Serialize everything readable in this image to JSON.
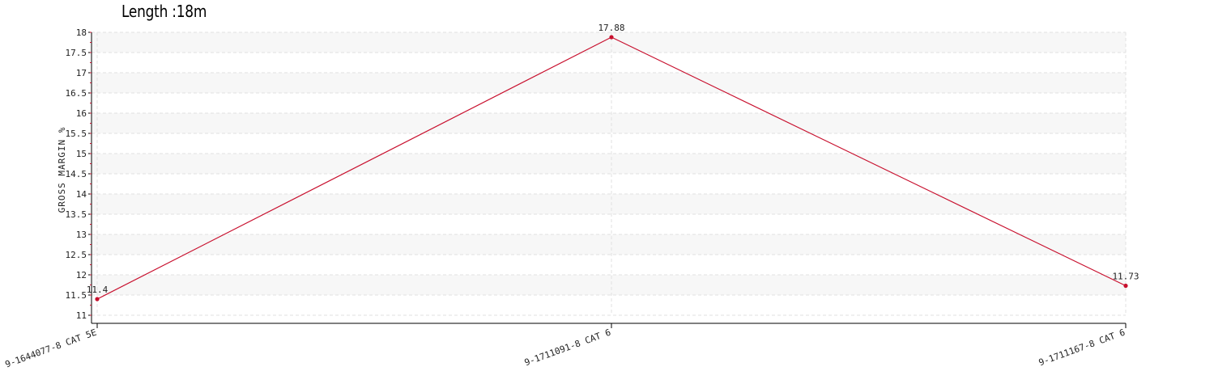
{
  "chart_data": {
    "type": "line",
    "title": "Length :18m",
    "xlabel": "",
    "ylabel": "GROSS MARGIN %",
    "categories": [
      "9-1644077-8 CAT 5E",
      "9-1711091-8 CAT 6",
      "9-1711167-8 CAT 6"
    ],
    "series": [
      {
        "values": [
          11.4,
          17.88,
          11.73
        ],
        "data_labels": [
          "11.4",
          "17.88",
          "11.73"
        ],
        "color": "#c8102e"
      }
    ],
    "ylim": [
      11,
      18
    ],
    "yticks": [
      "11",
      "11.5",
      "12",
      "12.5",
      "13",
      "13.5",
      "14",
      "14.5",
      "15",
      "15.5",
      "16",
      "16.5",
      "17",
      "17.5",
      "18"
    ],
    "grid": true,
    "band_color": "#f7f7f7",
    "grid_color": "#e2e2e2"
  }
}
